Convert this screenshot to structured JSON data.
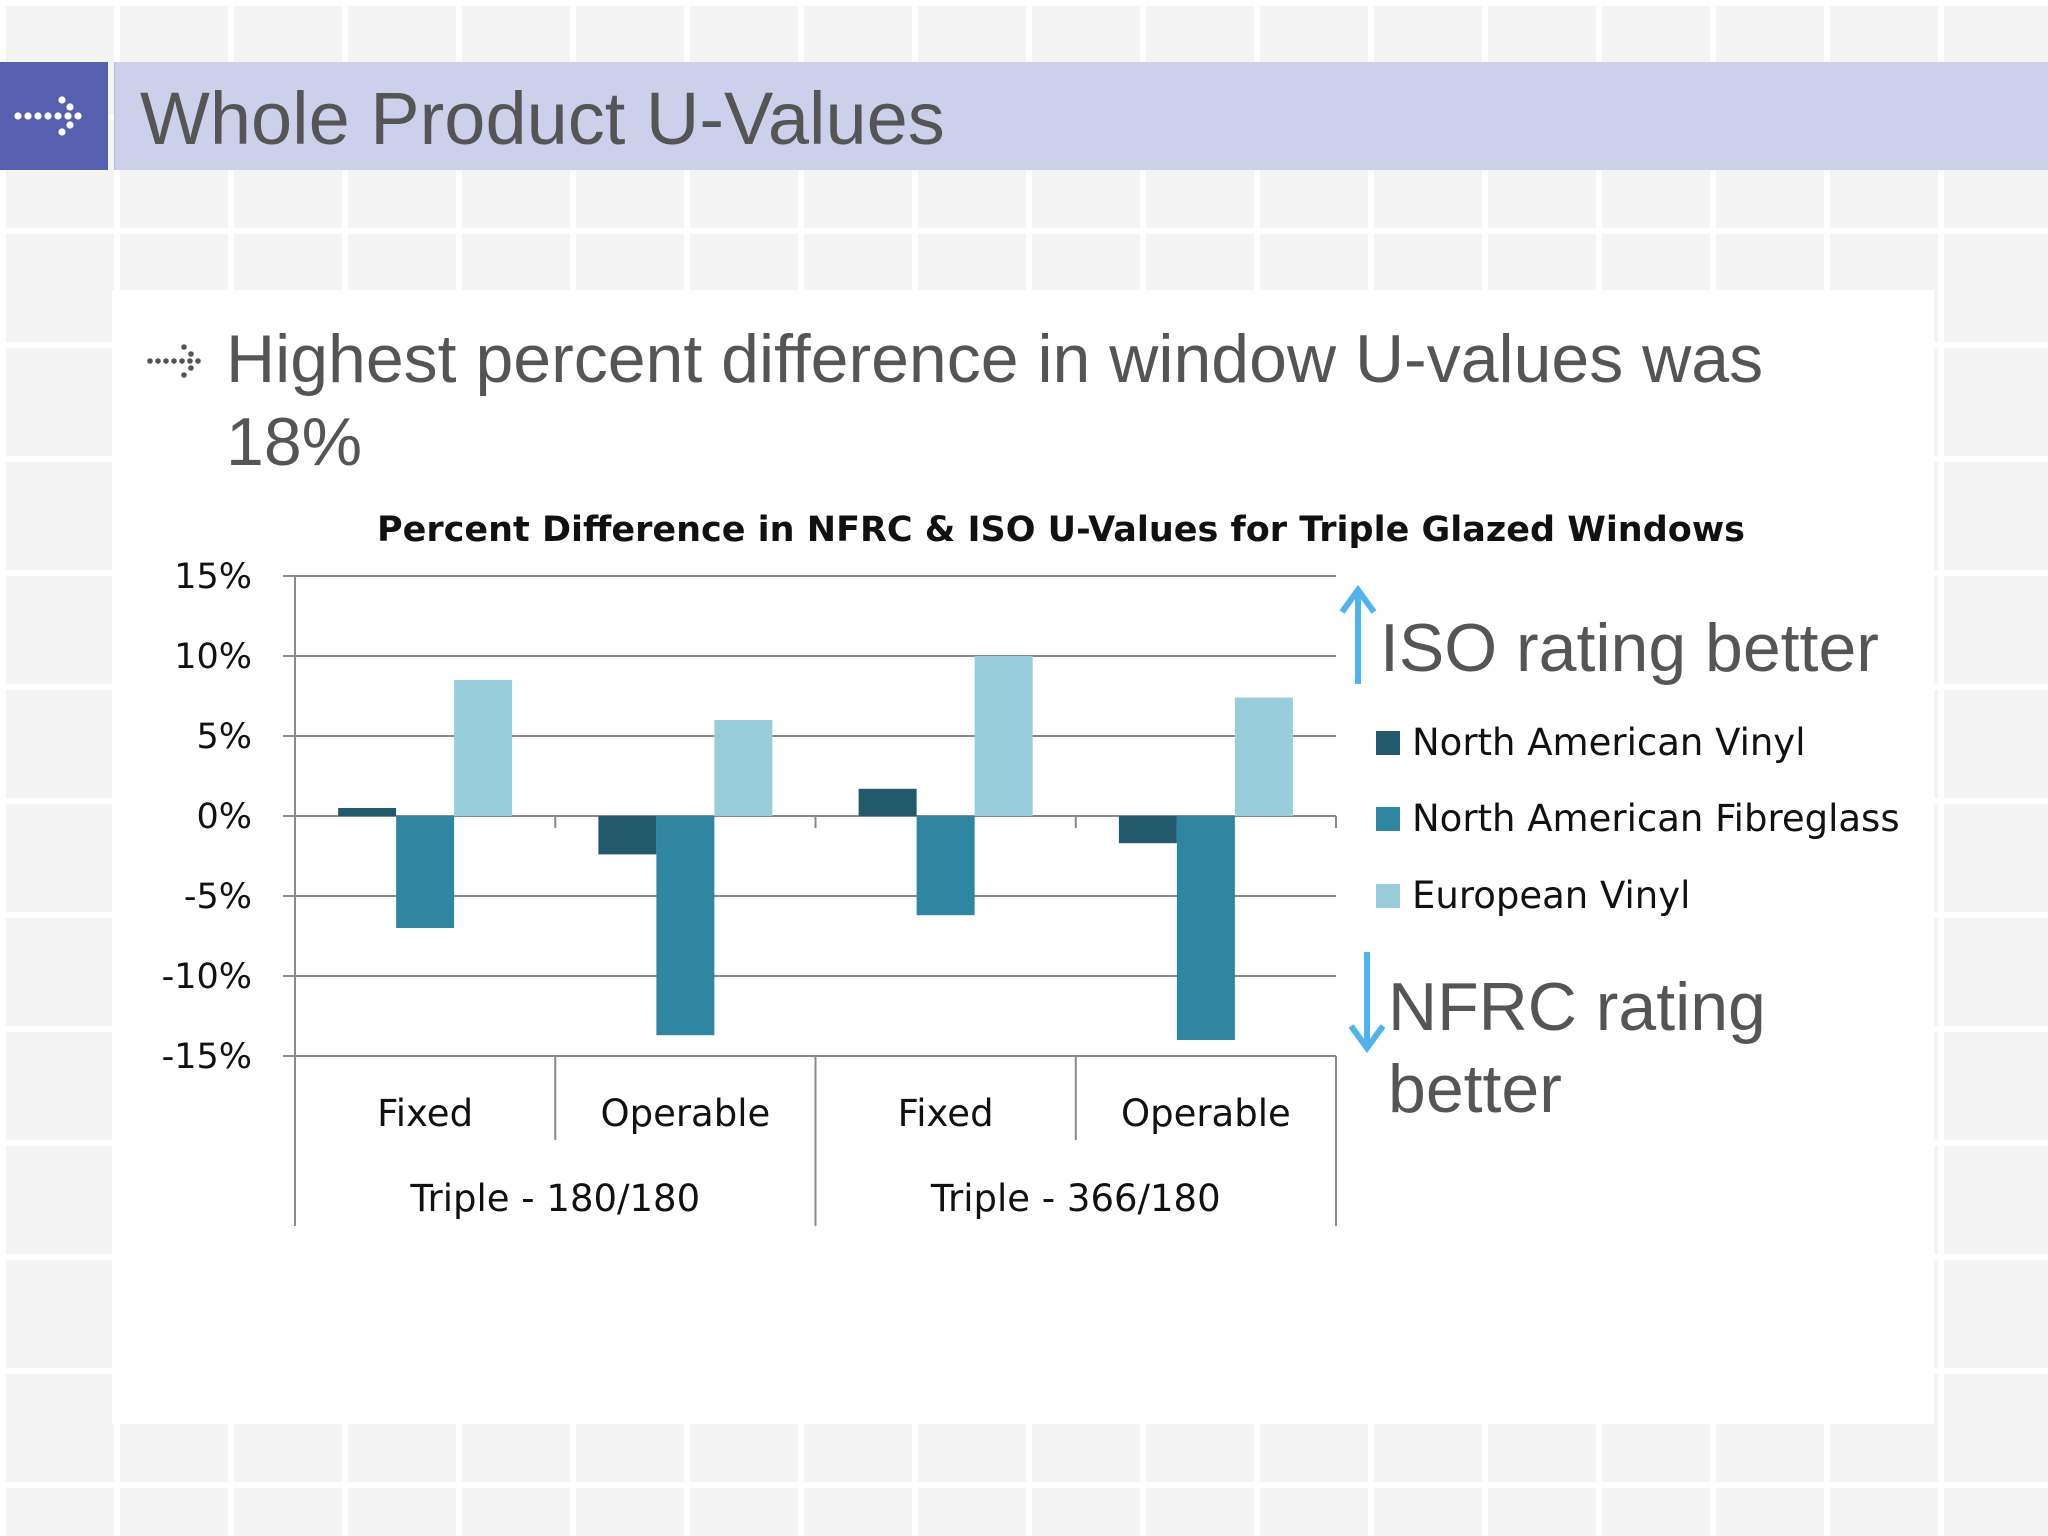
{
  "slide": {
    "title": "Whole Product U-Values",
    "bullet": "Highest percent difference in window U-values was 18%"
  },
  "callouts": {
    "iso": "ISO rating better",
    "nfrc": "NFRC rating better"
  },
  "icons": {
    "header": "dotted-arrow-right-icon",
    "bullet": "dotted-arrow-right-icon",
    "up": "up-arrow-icon",
    "down": "down-arrow-icon"
  },
  "colors": {
    "header_box": "#5760b0",
    "header_bar": "#ccd0ea",
    "arrow": "#4fb3ee",
    "na_vinyl": "#22596b",
    "na_fibreglass": "#2e86a0",
    "european_vinyl": "#98cedc"
  },
  "chart_data": {
    "type": "bar",
    "title": "Percent Difference in NFRC & ISO U-Values for Triple Glazed Windows",
    "categories": [
      "Fixed",
      "Operable",
      "Fixed",
      "Operable"
    ],
    "groups": [
      {
        "label": "Triple - 180/180",
        "span": 2
      },
      {
        "label": "Triple - 366/180",
        "span": 2
      }
    ],
    "series": [
      {
        "name": "North American Vinyl",
        "color": "#22596b",
        "values": [
          0.5,
          -2.4,
          1.7,
          -1.7
        ]
      },
      {
        "name": "North American Fibreglass",
        "color": "#2e86a0",
        "values": [
          -7.0,
          -13.7,
          -6.2,
          -14.0
        ]
      },
      {
        "name": "European Vinyl",
        "color": "#98cedc",
        "values": [
          8.5,
          6.0,
          10.0,
          7.4
        ]
      }
    ],
    "ylim": [
      -15,
      15
    ],
    "yticks": [
      15,
      10,
      5,
      0,
      -5,
      -10,
      -15
    ],
    "ytick_labels": [
      "15%",
      "10%",
      "5%",
      "0%",
      "-5%",
      "-10%",
      "-15%"
    ],
    "grid": true,
    "legend": "right"
  }
}
